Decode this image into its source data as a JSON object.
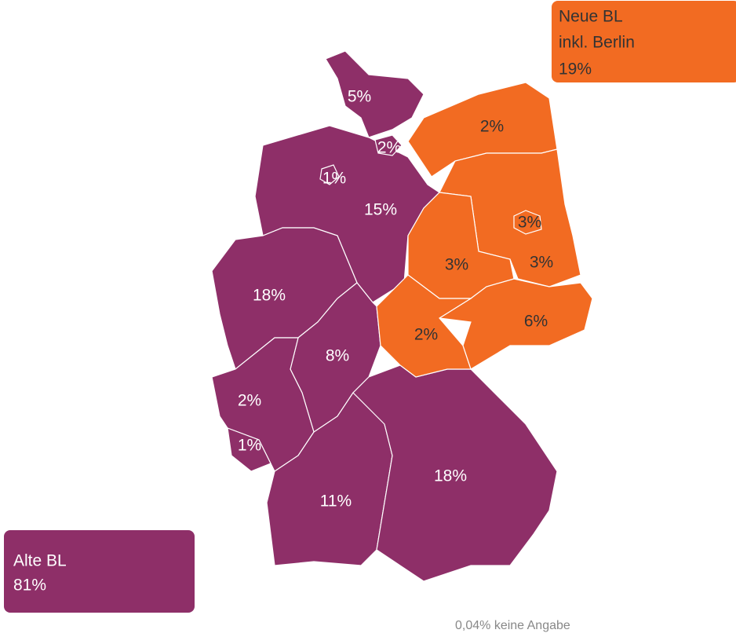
{
  "boxes": {
    "new": {
      "lines": [
        "Neue BL",
        "inkl. Berlin",
        "19%"
      ]
    },
    "old": {
      "lines": [
        "Alte BL",
        "81%"
      ]
    }
  },
  "regions": [
    {
      "label": "5%"
    },
    {
      "label": "2%"
    },
    {
      "label": "1%"
    },
    {
      "label": "15%"
    },
    {
      "label": "18%"
    },
    {
      "label": "8%"
    },
    {
      "label": "2%"
    },
    {
      "label": "1%"
    },
    {
      "label": "11%"
    },
    {
      "label": "18%"
    },
    {
      "label": "2%"
    },
    {
      "label": "3%"
    },
    {
      "label": "3%"
    },
    {
      "label": "3%"
    },
    {
      "label": "6%"
    },
    {
      "label": "2%"
    }
  ],
  "footnote": "0,04% keine Angabe"
}
